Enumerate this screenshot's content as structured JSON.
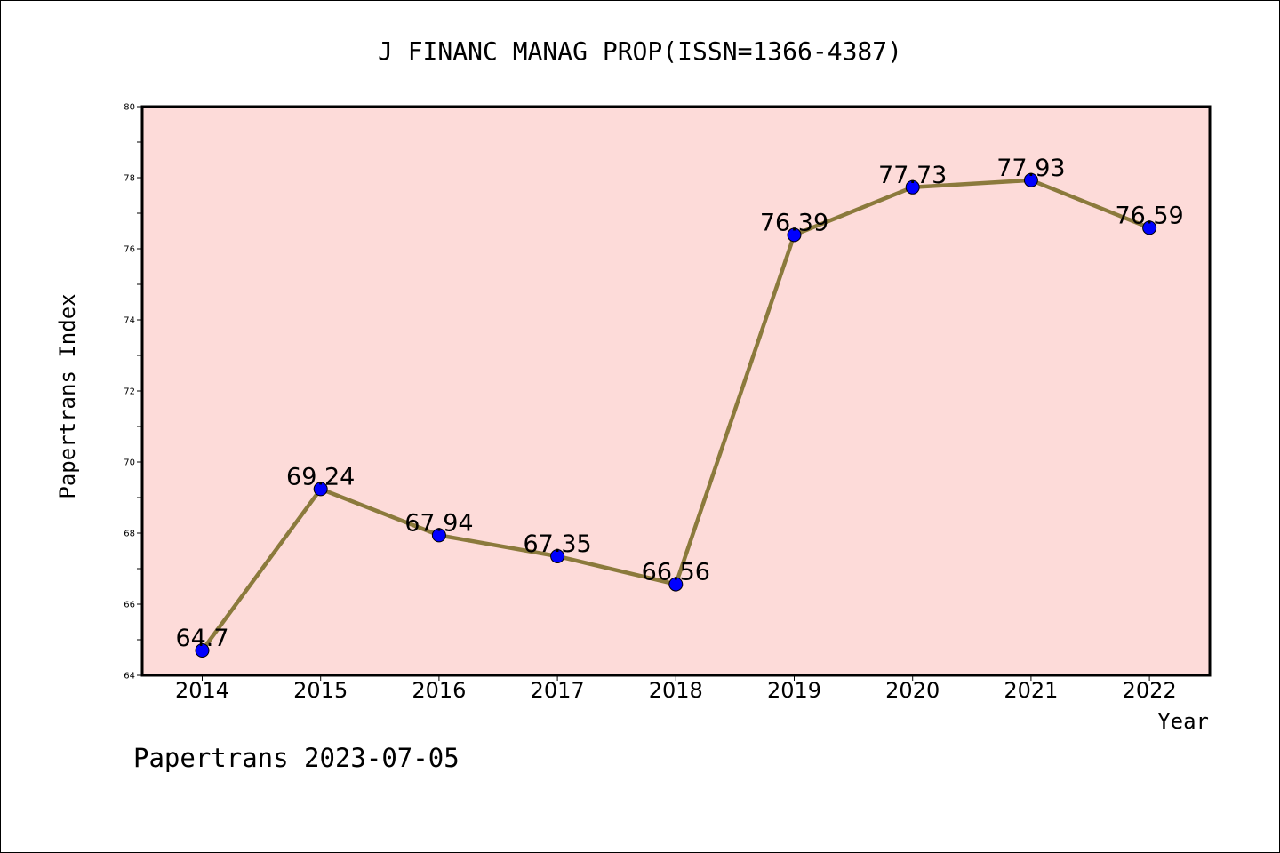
{
  "chart_data": {
    "type": "line",
    "title": "J FINANC MANAG PROP(ISSN=1366-4387)",
    "xlabel": "Year",
    "ylabel": "Papertrans Index",
    "categories": [
      "2014",
      "2015",
      "2016",
      "2017",
      "2018",
      "2019",
      "2020",
      "2021",
      "2022"
    ],
    "series": [
      {
        "values": [
          64.7,
          69.24,
          67.94,
          67.35,
          66.56,
          76.39,
          77.73,
          77.93,
          76.59
        ],
        "labels": [
          "64.7",
          "69.24",
          "67.94",
          "67.35",
          "66.56",
          "76.39",
          "77.73",
          "77.93",
          "76.59"
        ]
      }
    ],
    "ylim": [
      64,
      80
    ],
    "yticks": [
      "64",
      "66",
      "68",
      "70",
      "72",
      "74",
      "76",
      "78",
      "80"
    ],
    "grid": false,
    "legend": "none",
    "colors": {
      "plot_background": "#fddbd9",
      "line": "#8b7a3c",
      "marker": "#0000ff"
    }
  },
  "footer": "Papertrans 2023-07-05"
}
